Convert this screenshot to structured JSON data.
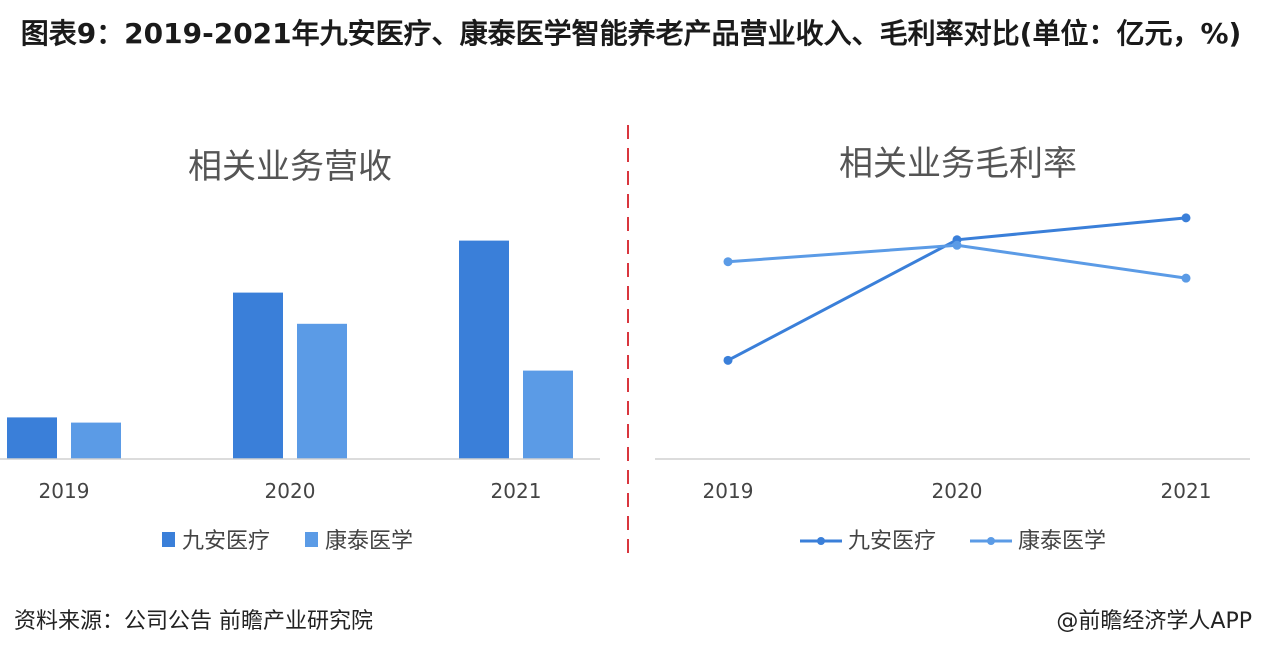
{
  "title": "图表9：2019-2021年九安医疗、康泰医学智能养老产品营业收入、毛利率对比(单位：亿元，%)",
  "source": "资料来源：公司公告 前瞻产业研究院",
  "credit": "@前瞻经济学人APP",
  "colors": {
    "series1": "#3a7fd9",
    "series2": "#5b9be6",
    "divider": "#d9363e",
    "axis": "#d0d0d0"
  },
  "chart_data": [
    {
      "type": "bar",
      "title": "相关业务营收",
      "categories": [
        "2019",
        "2020",
        "2021"
      ],
      "series": [
        {
          "name": "九安医疗",
          "values": [
            0.8,
            3.2,
            4.2
          ]
        },
        {
          "name": "康泰医学",
          "values": [
            0.7,
            2.6,
            1.7
          ]
        }
      ],
      "ylim": [
        0,
        4.5
      ],
      "legend": "bottom"
    },
    {
      "type": "line",
      "title": "相关业务毛利率",
      "categories": [
        "2019",
        "2020",
        "2021"
      ],
      "series": [
        {
          "name": "九安医疗",
          "values": [
            18,
            40,
            44
          ]
        },
        {
          "name": "康泰医学",
          "values": [
            36,
            39,
            33
          ]
        }
      ],
      "ylim": [
        0,
        50
      ],
      "legend": "bottom"
    }
  ]
}
